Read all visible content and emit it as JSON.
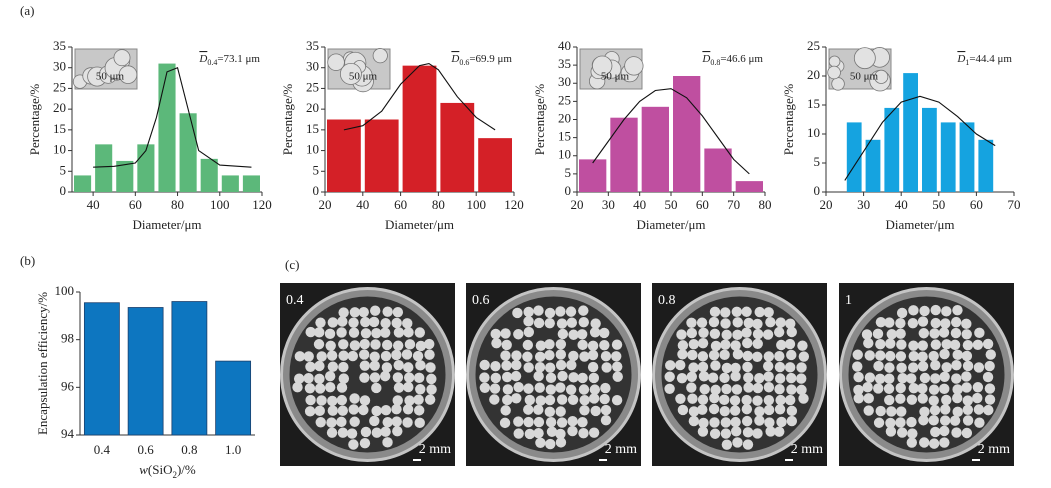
{
  "panels": [
    "(a)",
    "(b)",
    "(c)"
  ],
  "chart_data": [
    {
      "type": "histogram",
      "color": "#5cb87a",
      "bins": [
        30,
        40,
        50,
        60,
        70,
        80,
        90,
        100,
        110,
        120
      ],
      "values": [
        4,
        11.5,
        7.5,
        11.5,
        31,
        19,
        8,
        4,
        4
      ],
      "xlim": [
        30,
        120
      ],
      "xticks": [
        40,
        60,
        80,
        100,
        120
      ],
      "ylim": [
        0,
        35
      ],
      "yticks": [
        0,
        5,
        10,
        15,
        20,
        25,
        30,
        35
      ],
      "xlabel": "Diameter/μm",
      "ylabel": "Percentage/%",
      "annotation": [
        "D",
        "0.4",
        "=73.1 μm"
      ],
      "inset_label": "50 μm",
      "fit": {
        "x": [
          40,
          50,
          60,
          65,
          70,
          75,
          80,
          85,
          90,
          100,
          115
        ],
        "y": [
          6,
          6.2,
          7,
          10,
          18,
          29,
          30,
          20,
          10,
          6.5,
          6
        ]
      }
    },
    {
      "type": "histogram",
      "color": "#d42027",
      "bins": [
        20,
        40,
        60,
        80,
        100,
        120
      ],
      "values": [
        17.5,
        17.5,
        30.5,
        21.5,
        13
      ],
      "xlim": [
        20,
        120
      ],
      "xticks": [
        20,
        40,
        60,
        80,
        100,
        120
      ],
      "ylim": [
        0,
        35
      ],
      "yticks": [
        0,
        5,
        10,
        15,
        20,
        25,
        30,
        35
      ],
      "xlabel": "Diameter/μm",
      "ylabel": "Percentage/%",
      "annotation": [
        "D",
        "0.6",
        "=69.9 μm"
      ],
      "inset_label": "50 μm",
      "fit": {
        "x": [
          30,
          40,
          50,
          60,
          70,
          75,
          80,
          90,
          100,
          110
        ],
        "y": [
          15,
          16,
          19.5,
          26,
          30.5,
          31,
          29.5,
          23,
          18,
          15
        ]
      }
    },
    {
      "type": "histogram",
      "color": "#bf4fa0",
      "bins": [
        20,
        30,
        40,
        50,
        60,
        70,
        80
      ],
      "values": [
        9,
        20.5,
        23.5,
        32,
        12,
        3
      ],
      "xlim": [
        20,
        80
      ],
      "xticks": [
        20,
        30,
        40,
        50,
        60,
        70,
        80
      ],
      "ylim": [
        0,
        40
      ],
      "yticks": [
        0,
        5,
        10,
        15,
        20,
        25,
        30,
        35,
        40
      ],
      "xlabel": "Diameter/μm",
      "ylabel": "Percentage/%",
      "annotation": [
        "D",
        "0.8",
        "=46.6 μm"
      ],
      "inset_label": "50 μm",
      "fit": {
        "x": [
          25,
          30,
          35,
          40,
          45,
          50,
          55,
          60,
          65,
          70,
          75
        ],
        "y": [
          8,
          14,
          20,
          25,
          28,
          28.5,
          26,
          21,
          15,
          9,
          5
        ]
      }
    },
    {
      "type": "histogram",
      "color": "#15a3e0",
      "bins": [
        25,
        30,
        35,
        40,
        45,
        50,
        55,
        60,
        65
      ],
      "values": [
        12,
        9,
        14.5,
        20.5,
        14.5,
        12,
        12,
        9
      ],
      "xlim": [
        20,
        70
      ],
      "xticks": [
        20,
        30,
        40,
        50,
        60,
        70
      ],
      "ylim": [
        0,
        25
      ],
      "yticks": [
        0,
        5,
        10,
        15,
        20,
        25
      ],
      "xlabel": "Diameter/μm",
      "ylabel": "Percentage/%",
      "annotation": [
        "D",
        "1",
        "=44.4 μm"
      ],
      "inset_label": "50 μm",
      "fit": {
        "x": [
          25,
          30,
          35,
          40,
          45,
          50,
          55,
          60,
          65
        ],
        "y": [
          2,
          7,
          12,
          15.5,
          16.5,
          15.5,
          13,
          10,
          8
        ]
      }
    },
    {
      "type": "bar",
      "color": "#0d76c0",
      "categories": [
        "0.4",
        "0.6",
        "0.8",
        "1.0"
      ],
      "values": [
        99.55,
        99.35,
        99.6,
        97.1
      ],
      "ylim": [
        94,
        100
      ],
      "yticks": [
        94,
        96,
        98,
        100
      ],
      "ylabel": "Encapsulation efficiency/%",
      "xlabel": [
        "w",
        "(SiO",
        "2",
        ")/%"
      ]
    }
  ],
  "photos": [
    {
      "label": "0.4",
      "scale": "2 mm"
    },
    {
      "label": "0.6",
      "scale": "2 mm"
    },
    {
      "label": "0.8",
      "scale": "2 mm"
    },
    {
      "label": "1",
      "scale": "2 mm"
    }
  ]
}
